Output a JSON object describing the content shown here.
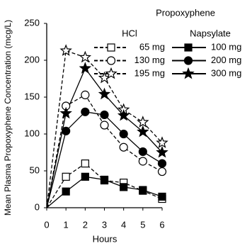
{
  "chart_data": {
    "type": "line",
    "x_label": "Hours",
    "y_label": "Mean Plasma Propoxyphene Concentration (mcg/L)",
    "x": [
      0,
      1,
      2,
      3,
      4,
      5,
      6
    ],
    "xlim": [
      0,
      6
    ],
    "xticks": [
      0,
      1,
      2,
      3,
      4,
      5,
      6
    ],
    "ylim": [
      0,
      250
    ],
    "yticks": [
      0,
      50,
      100,
      150,
      200,
      250
    ],
    "legend": {
      "title": "Propoxyphene",
      "columns": [
        {
          "name": "HCl"
        },
        {
          "name": "Napsylate"
        }
      ]
    },
    "series": [
      {
        "name": "65 mg",
        "color": "#000000",
        "marker": "square",
        "filled": false,
        "dashed": true,
        "legend_column": 0,
        "values": [
          0,
          42,
          60,
          37,
          34,
          23,
          12
        ]
      },
      {
        "name": "130 mg",
        "color": "#000000",
        "marker": "circle",
        "filled": false,
        "dashed": true,
        "legend_column": 0,
        "values": [
          0,
          138,
          153,
          112,
          82,
          63,
          49
        ]
      },
      {
        "name": "195 mg",
        "color": "#000000",
        "marker": "star",
        "filled": false,
        "dashed": true,
        "legend_column": 0,
        "values": [
          0,
          213,
          204,
          176,
          133,
          116,
          88
        ]
      },
      {
        "name": "100 mg",
        "color": "#000000",
        "marker": "square",
        "filled": true,
        "dashed": false,
        "legend_column": 1,
        "values": [
          0,
          22,
          42,
          38,
          28,
          24,
          15
        ]
      },
      {
        "name": "200 mg",
        "color": "#000000",
        "marker": "circle",
        "filled": true,
        "dashed": false,
        "legend_column": 1,
        "values": [
          0,
          104,
          130,
          126,
          100,
          76,
          60
        ]
      },
      {
        "name": "300 mg",
        "color": "#000000",
        "marker": "star",
        "filled": true,
        "dashed": false,
        "legend_column": 1,
        "values": [
          0,
          128,
          189,
          154,
          125,
          103,
          75
        ]
      }
    ]
  }
}
